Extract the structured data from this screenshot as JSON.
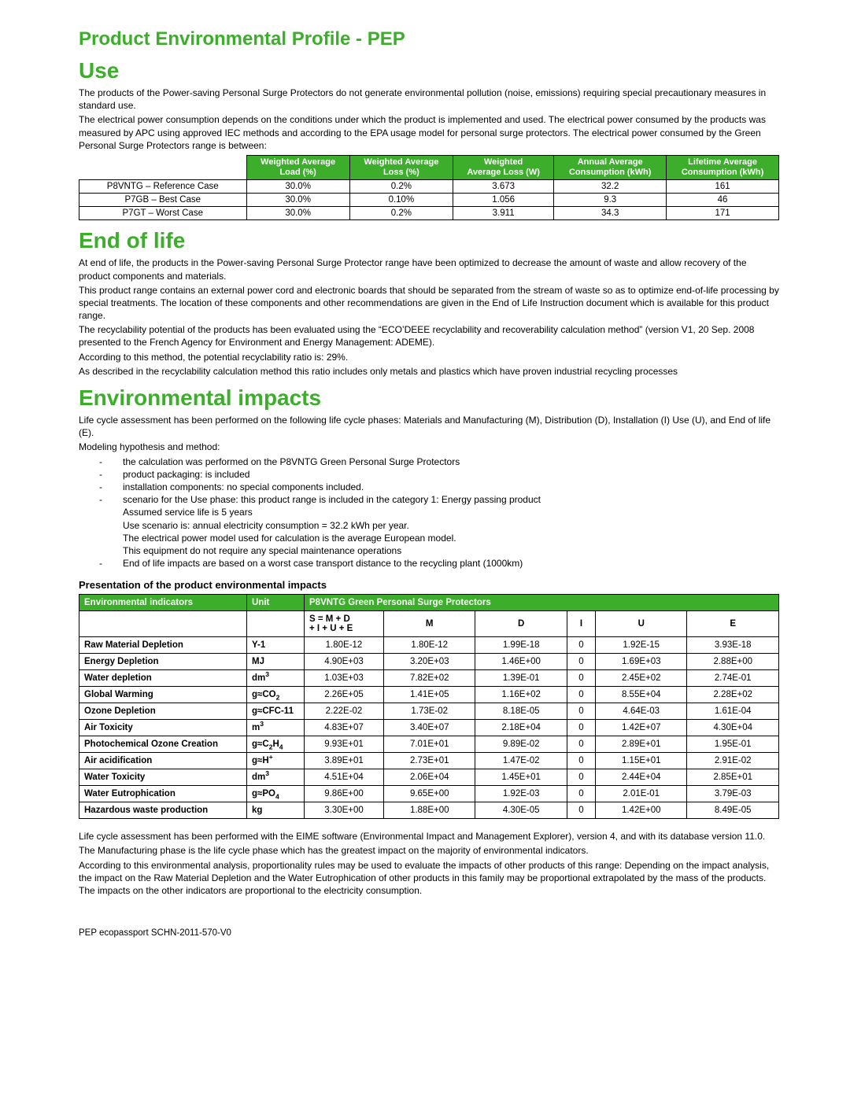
{
  "colors": {
    "accent": "#3dae2b",
    "text": "#000000",
    "background": "#ffffff",
    "border": "#000000"
  },
  "doc": {
    "subtitle": "Product Environmental Profile - PEP",
    "footer": "PEP ecopassport SCHN-2011-570-V0"
  },
  "use": {
    "heading": "Use",
    "p1": "The products of the Power-saving Personal Surge Protectors do not generate environmental pollution (noise, emissions) requiring special precautionary measures in standard use.",
    "p2": "The electrical power consumption depends on the conditions under which the product is implemented and used. The electrical power consumed by the products was measured by APC using approved IEC methods and according to the EPA usage model for personal surge protectors.  The electrical power consumed by the Green Personal Surge Protectors range is between:",
    "table": {
      "headers": [
        "",
        "Weighted Average Load (%)",
        "Weighted Average Loss (%)",
        "Weighted Average Loss (W)",
        "Annual Average Consumption (kWh)",
        "Lifetime Average Consumption (kWh)"
      ],
      "rows": [
        [
          "P8VNTG – Reference Case",
          "30.0%",
          "0.2%",
          "3.673",
          "32.2",
          "161"
        ],
        [
          "P7GB – Best Case",
          "30.0%",
          "0.10%",
          "1.056",
          "9.3",
          "46"
        ],
        [
          "P7GT – Worst Case",
          "30.0%",
          "0.2%",
          "3.911",
          "34.3",
          "171"
        ]
      ]
    }
  },
  "eol": {
    "heading": "End of life",
    "p1": "At end of life, the products in the Power-saving Personal Surge Protector range have been optimized to decrease the amount of waste and allow recovery of the product components and materials.",
    "p2": "This product range contains an external power cord and electronic boards that should be separated from the stream of waste so as to optimize end-of-life processing by special treatments. The location of these components and other recommendations are given in the End of Life Instruction document which is available for this product range.",
    "p3": "The recyclability potential of the products has been evaluated using the “ECO’DEEE recyclability and recoverability calculation method” (version V1, 20 Sep. 2008 presented to the French Agency for Environment and Energy Management: ADEME).",
    "p4": "According to this method, the potential recyclability ratio is: 29%.",
    "p5": "As described in the recyclability calculation method this ratio includes only metals and plastics which have proven industrial recycling processes"
  },
  "impacts": {
    "heading": "Environmental impacts",
    "p1": "Life cycle assessment has been performed on the following life cycle phases: Materials and Manufacturing (M), Distribution (D), Installation (I) Use (U), and End of life (E).",
    "p2": "Modeling hypothesis and method:",
    "bullets": [
      "the calculation was performed on the P8VNTG Green Personal Surge Protectors",
      "product packaging: is included",
      "installation components: no special components included.",
      "scenario for the Use phase: this product range is included in the category 1: Energy passing product\nAssumed service life is 5 years\nUse scenario is: annual electricity consumption = 32.2 kWh per year.\nThe electrical power model used for calculation is the average European model.\nThis equipment do not require any special maintenance operations",
      "End of life impacts are based on a worst case transport distance to the recycling plant (1000km)"
    ],
    "sub_h": "Presentation of the product environmental impacts",
    "table": {
      "h_ind": "Environmental indicators",
      "h_unit": "Unit",
      "h_prod": "P8VNTG Green Personal Surge Protectors",
      "sub_cols": [
        "S = M + D + I + U + E",
        "M",
        "D",
        "I",
        "U",
        "E"
      ],
      "rows": [
        {
          "ind": "Raw Material Depletion",
          "unit": "Y-1",
          "v": [
            "1.80E-12",
            "1.80E-12",
            "1.99E-18",
            "0",
            "1.92E-15",
            "3.93E-18"
          ]
        },
        {
          "ind": "Energy Depletion",
          "unit": "MJ",
          "v": [
            "4.90E+03",
            "3.20E+03",
            "1.46E+00",
            "0",
            "1.69E+03",
            "2.88E+00"
          ]
        },
        {
          "ind": "Water depletion",
          "unit": "dm<sup>3</sup>",
          "v": [
            "1.03E+03",
            "7.82E+02",
            "1.39E-01",
            "0",
            "2.45E+02",
            "2.74E-01"
          ]
        },
        {
          "ind": "Global Warming",
          "unit": "g<span class='approx'>≈</span>CO<sub>2</sub>",
          "v": [
            "2.26E+05",
            "1.41E+05",
            "1.16E+02",
            "0",
            "8.55E+04",
            "2.28E+02"
          ]
        },
        {
          "ind": "Ozone Depletion",
          "unit": "g<span class='approx'>≈</span>CFC-11",
          "v": [
            "2.22E-02",
            "1.73E-02",
            "8.18E-05",
            "0",
            "4.64E-03",
            "1.61E-04"
          ]
        },
        {
          "ind": "Air Toxicity",
          "unit": "m<sup>3</sup>",
          "v": [
            "4.83E+07",
            "3.40E+07",
            "2.18E+04",
            "0",
            "1.42E+07",
            "4.30E+04"
          ]
        },
        {
          "ind": "Photochemical Ozone Creation",
          "unit": "g<span class='approx'>≈</span>C<sub>2</sub>H<sub>4</sub>",
          "v": [
            "9.93E+01",
            "7.01E+01",
            "9.89E-02",
            "0",
            "2.89E+01",
            "1.95E-01"
          ]
        },
        {
          "ind": "Air acidification",
          "unit": "g<span class='approx'>≈</span>H<sup>+</sup>",
          "v": [
            "3.89E+01",
            "2.73E+01",
            "1.47E-02",
            "0",
            "1.15E+01",
            "2.91E-02"
          ]
        },
        {
          "ind": "Water Toxicity",
          "unit": "dm<sup>3</sup>",
          "v": [
            "4.51E+04",
            "2.06E+04",
            "1.45E+01",
            "0",
            "2.44E+04",
            "2.85E+01"
          ]
        },
        {
          "ind": "Water Eutrophication",
          "unit": "g<span class='approx'>≈</span>PO<sub>4</sub>",
          "v": [
            "9.86E+00",
            "9.65E+00",
            "1.92E-03",
            "0",
            "2.01E-01",
            "3.79E-03"
          ]
        },
        {
          "ind": "Hazardous waste production",
          "unit": "kg",
          "v": [
            "3.30E+00",
            "1.88E+00",
            "4.30E-05",
            "0",
            "1.42E+00",
            "8.49E-05"
          ]
        }
      ]
    },
    "p3": "Life cycle assessment has been performed with the EIME software (Environmental Impact and Management Explorer), version 4, and with its database version 11.0.",
    "p4": "The Manufacturing phase is the life cycle phase which has the greatest impact on the majority of environmental indicators.",
    "p5": "According to this environmental analysis, proportionality rules may be used to evaluate the impacts of other products of this range: Depending on the impact analysis, the impact on the Raw Material Depletion and the Water Eutrophication of other products in this family may be proportional extrapolated by the mass of the products. The impacts on the other indicators are proportional to the electricity consumption."
  }
}
